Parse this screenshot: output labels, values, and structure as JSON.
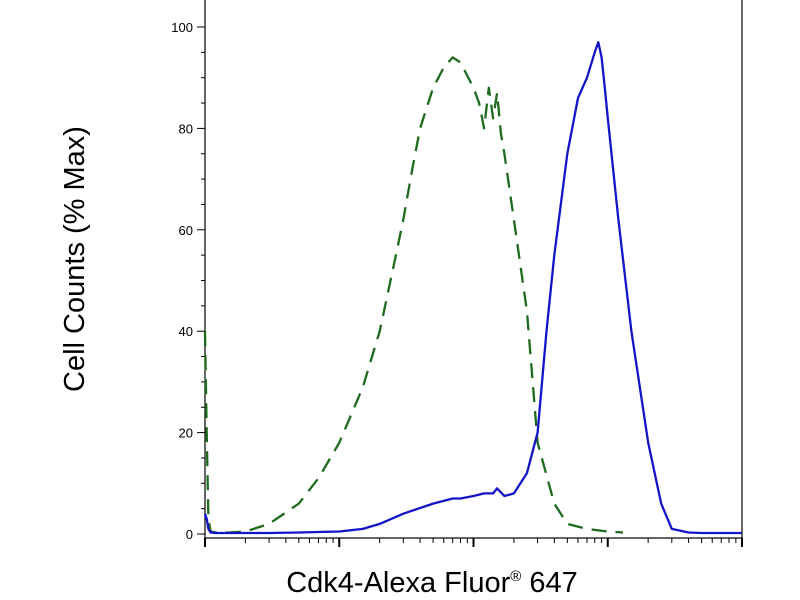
{
  "chart_data": {
    "type": "line",
    "title": "",
    "xlabel": "Cdk4-Alexa Fluor",
    "xlabel_superscript": "®",
    "xlabel_suffix": " 647",
    "ylabel": "Cell Counts (% Max)",
    "xscale": "log",
    "xlim": [
      10,
      100000
    ],
    "ylim": [
      0,
      100
    ],
    "y_ticks": [
      0,
      20,
      40,
      60,
      80,
      100
    ],
    "y_tick_labels": [
      "0",
      "20",
      "40",
      "60",
      "80",
      "100"
    ],
    "x_tick_labels": [],
    "grid": false,
    "legend": "none",
    "series": [
      {
        "style": "dashed",
        "color": "#1e6b1e",
        "x": [
          10,
          10.3,
          10.6,
          11,
          12,
          15,
          20,
          30,
          50,
          70,
          100,
          150,
          200,
          250,
          300,
          350,
          400,
          500,
          600,
          700,
          800,
          1000,
          1100,
          1200,
          1300,
          1400,
          1500,
          1600,
          1700,
          2000,
          2500,
          3000,
          4000,
          5000,
          7000,
          10000,
          13000
        ],
        "y": [
          40,
          20,
          3,
          0.5,
          0.3,
          0.3,
          0.5,
          2,
          6,
          11,
          18,
          29,
          40,
          52,
          62,
          72,
          80,
          88,
          92,
          94,
          93,
          88,
          85,
          80,
          88,
          82,
          87,
          79,
          75,
          62,
          44,
          18,
          6,
          2,
          1,
          0.5,
          0.3
        ]
      },
      {
        "style": "solid",
        "color": "#1515c8",
        "x": [
          10,
          10.3,
          10.6,
          11,
          12,
          15,
          20,
          30,
          50,
          100,
          150,
          200,
          300,
          500,
          700,
          800,
          1000,
          1200,
          1400,
          1500,
          1700,
          2000,
          2500,
          3000,
          3500,
          4000,
          5000,
          6000,
          7000,
          8000,
          8500,
          9000,
          9500,
          10000,
          12000,
          15000,
          20000,
          25000,
          30000,
          40000,
          50000,
          100000
        ],
        "y": [
          4,
          3,
          1,
          0.3,
          0.2,
          0.2,
          0.2,
          0.2,
          0.3,
          0.5,
          1,
          2,
          4,
          6,
          7,
          7,
          7.5,
          8,
          8,
          9,
          7.5,
          8,
          12,
          20,
          40,
          55,
          75,
          86,
          90,
          95,
          97,
          94,
          88,
          82,
          62,
          40,
          18,
          6,
          1,
          0.3,
          0.2,
          0.2
        ]
      }
    ]
  }
}
